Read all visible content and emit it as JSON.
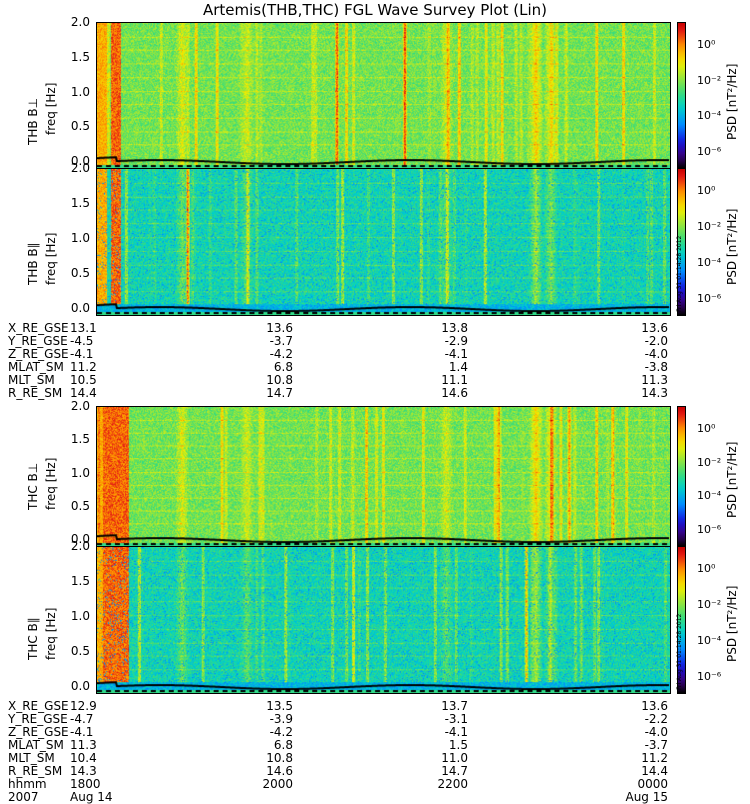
{
  "title": "Artemis(THB,THC) FGL Wave Survey Plot (Lin)",
  "chart_data": [
    {
      "type": "heatmap",
      "panel": "THB B⊥",
      "probe": "THB",
      "component": "B⊥",
      "ylabel": "freq [Hz]",
      "yticks": [
        "2.0",
        "1.5",
        "1.0",
        "0.5",
        "0.0"
      ],
      "ylim": [
        0,
        2.0
      ],
      "colorbar": {
        "label": "PSD [nT²/Hz]",
        "ticks": [
          "10⁰",
          "10⁻²",
          "10⁻⁴",
          "10⁻⁶"
        ],
        "scale": "log"
      }
    },
    {
      "type": "heatmap",
      "panel": "THB B∥",
      "probe": "THB",
      "component": "B∥",
      "ylabel": "freq [Hz]",
      "yticks": [
        "2.0",
        "1.5",
        "1.0",
        "0.5",
        "0.0"
      ],
      "ylim": [
        0,
        2.0
      ],
      "colorbar": {
        "label": "PSD [nT²/Hz]",
        "ticks": [
          "10⁰",
          "10⁻²",
          "10⁻⁴",
          "10⁻⁶"
        ],
        "scale": "log"
      }
    },
    {
      "type": "heatmap",
      "panel": "THC B⊥",
      "probe": "THC",
      "component": "B⊥",
      "ylabel": "freq [Hz]",
      "yticks": [
        "2.0",
        "1.5",
        "1.0",
        "0.5",
        "0.0"
      ],
      "ylim": [
        0,
        2.0
      ],
      "colorbar": {
        "label": "PSD [nT²/Hz]",
        "ticks": [
          "10⁰",
          "10⁻²",
          "10⁻⁴",
          "10⁻⁶"
        ],
        "scale": "log"
      }
    },
    {
      "type": "heatmap",
      "panel": "THC B∥",
      "probe": "THC",
      "component": "B∥",
      "ylabel": "freq [Hz]",
      "yticks": [
        "2.0",
        "1.5",
        "1.0",
        "0.5",
        "0.0"
      ],
      "ylim": [
        0,
        2.0
      ],
      "colorbar": {
        "label": "PSD [nT²/Hz]",
        "ticks": [
          "10⁰",
          "10⁻²",
          "10⁻⁴",
          "10⁻⁶"
        ],
        "scale": "log"
      }
    }
  ],
  "stamp": "Fri Aug 31 01:14:28 2012",
  "ephemeris_thb": {
    "rows": [
      {
        "label": "X_RE_GSE",
        "values": [
          "13.1",
          "13.6",
          "13.8",
          "13.6"
        ]
      },
      {
        "label": "Y_RE_GSE",
        "values": [
          "-4.5",
          "-3.7",
          "-2.9",
          "-2.0"
        ]
      },
      {
        "label": "Z_RE_GSE",
        "values": [
          "-4.1",
          "-4.2",
          "-4.1",
          "-4.0"
        ]
      },
      {
        "label": "MLAT_SM",
        "values": [
          "11.2",
          "6.8",
          "1.4",
          "-3.8"
        ]
      },
      {
        "label": "MLT_SM",
        "values": [
          "10.5",
          "10.8",
          "11.1",
          "11.3"
        ]
      },
      {
        "label": "R_RE_SM",
        "values": [
          "14.4",
          "14.7",
          "14.6",
          "14.3"
        ]
      }
    ]
  },
  "ephemeris_thc": {
    "rows": [
      {
        "label": "X_RE_GSE",
        "values": [
          "12.9",
          "13.5",
          "13.7",
          "13.6"
        ]
      },
      {
        "label": "Y_RE_GSE",
        "values": [
          "-4.7",
          "-3.9",
          "-3.1",
          "-2.2"
        ]
      },
      {
        "label": "Z_RE_GSE",
        "values": [
          "-4.1",
          "-4.2",
          "-4.1",
          "-4.0"
        ]
      },
      {
        "label": "MLAT_SM",
        "values": [
          "11.3",
          "6.8",
          "1.5",
          "-3.7"
        ]
      },
      {
        "label": "MLT_SM",
        "values": [
          "10.4",
          "10.8",
          "11.0",
          "11.2"
        ]
      },
      {
        "label": "R_RE_SM",
        "values": [
          "14.3",
          "14.6",
          "14.7",
          "14.4"
        ]
      },
      {
        "label": "hhmm",
        "values": [
          "1800",
          "2000",
          "2200",
          "0000"
        ]
      }
    ]
  },
  "date_row": {
    "label": "2007",
    "values": [
      "Aug 14",
      "",
      "",
      "Aug 15"
    ]
  }
}
